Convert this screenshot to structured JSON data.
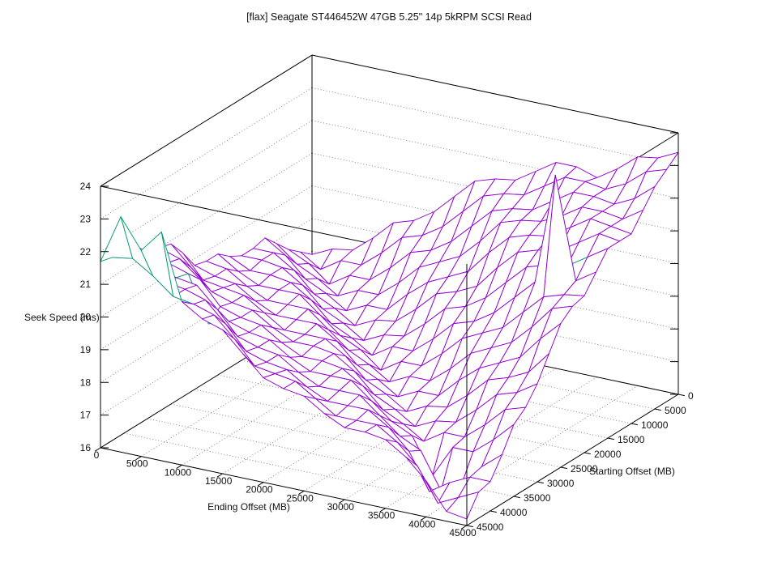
{
  "title": "[flax] Seagate ST446452W 47GB 5.25\" 14p 5kRPM SCSI Read",
  "chart_data": {
    "type": "surface3d-wireframe",
    "title": "[flax] Seagate ST446452W 47GB 5.25\" 14p 5kRPM SCSI Read",
    "xlabel": "Ending Offset (MB)",
    "ylabel": "Starting Offset (MB)",
    "zlabel": "Seek Speed (ms)",
    "xlim": [
      0,
      45000
    ],
    "ylim": [
      0,
      45000
    ],
    "zlim": [
      16,
      24
    ],
    "x_ticks": [
      0,
      5000,
      10000,
      15000,
      20000,
      25000,
      30000,
      35000,
      40000,
      45000
    ],
    "y_ticks": [
      0,
      5000,
      10000,
      15000,
      20000,
      25000,
      30000,
      35000,
      40000,
      45000
    ],
    "z_ticks": [
      16,
      17,
      18,
      19,
      20,
      21,
      22,
      23,
      24
    ],
    "grid": "dotted",
    "hidden3d": true,
    "legend_position": "none",
    "colors": {
      "surface_top": "#9400d3",
      "surface_bottom": "#009e73",
      "box": "#000000",
      "grid": "#878787",
      "text": "#111111",
      "background": "#ffffff"
    },
    "x": [
      0,
      2500,
      5000,
      7500,
      10000,
      12500,
      15000,
      17500,
      20000,
      22500,
      25000,
      27500,
      30000,
      32500,
      35000,
      37500,
      40000,
      42500,
      45000
    ],
    "y": [
      0,
      2500,
      5000,
      7500,
      10000,
      12500,
      15000,
      17500,
      20000,
      22500,
      25000,
      27500,
      30000,
      32500,
      35000,
      37500,
      40000,
      42500,
      45000
    ],
    "z_grid": [
      [
        17.9,
        18.2,
        18.3,
        18.8,
        19.4,
        19.6,
        20.0,
        20.6,
        21.2,
        21.4,
        21.5,
        21.9,
        22.3,
        22.3,
        22.1,
        22.5,
        23.0,
        23.1,
        23.4
      ],
      [
        18.2,
        17.8,
        18.2,
        18.2,
        18.7,
        19.3,
        19.5,
        19.9,
        20.5,
        21.1,
        21.3,
        21.4,
        21.8,
        22.2,
        22.2,
        22.1,
        22.4,
        22.9,
        23.1
      ],
      [
        18.5,
        18.2,
        17.7,
        18.1,
        18.1,
        18.6,
        19.2,
        19.4,
        19.8,
        20.4,
        21.0,
        21.2,
        21.3,
        21.7,
        22.1,
        22.1,
        22.0,
        22.3,
        22.8
      ],
      [
        18.9,
        18.4,
        18.1,
        17.7,
        18.0,
        18.0,
        18.5,
        19.1,
        19.4,
        19.7,
        20.3,
        21.0,
        21.2,
        21.3,
        21.6,
        22.0,
        22.0,
        21.9,
        22.3
      ],
      [
        19.3,
        18.9,
        18.3,
        18.0,
        17.6,
        17.9,
        17.9,
        18.5,
        19.0,
        19.3,
        19.6,
        20.3,
        20.9,
        21.1,
        21.2,
        21.6,
        22.0,
        21.9,
        21.8
      ],
      [
        19.2,
        19.2,
        18.8,
        18.2,
        17.9,
        17.5,
        17.8,
        17.9,
        18.4,
        19.0,
        19.2,
        19.5,
        20.2,
        20.8,
        21.0,
        21.1,
        21.5,
        21.9,
        21.8
      ],
      [
        19.2,
        19.2,
        19.1,
        18.7,
        18.1,
        17.8,
        17.4,
        17.7,
        17.8,
        18.3,
        18.9,
        19.1,
        19.5,
        20.1,
        20.7,
        20.9,
        21.0,
        21.4,
        21.8
      ],
      [
        19.4,
        19.1,
        19.1,
        19.0,
        18.6,
        18.0,
        17.7,
        17.3,
        17.7,
        17.7,
        18.2,
        18.8,
        19.0,
        19.4,
        20.0,
        20.6,
        24.0,
        20.9,
        21.3
      ],
      [
        19.7,
        19.3,
        19.0,
        19.0,
        19.0,
        18.5,
        18.0,
        17.7,
        17.2,
        17.6,
        17.6,
        18.1,
        18.7,
        19.0,
        19.3,
        19.9,
        20.5,
        20.7,
        20.8
      ],
      [
        19.7,
        19.6,
        19.2,
        18.9,
        18.9,
        18.9,
        18.4,
        17.9,
        17.6,
        17.2,
        17.5,
        17.5,
        18.0,
        18.6,
        18.9,
        19.2,
        19.8,
        20.5,
        20.7
      ],
      [
        19.8,
        19.6,
        19.5,
        19.1,
        18.8,
        18.8,
        18.8,
        18.4,
        17.8,
        17.5,
        17.1,
        17.4,
        17.4,
        18.0,
        18.5,
        18.8,
        19.1,
        19.8,
        20.4
      ],
      [
        20.4,
        19.7,
        19.6,
        19.5,
        19.1,
        18.7,
        18.7,
        18.7,
        18.3,
        17.7,
        17.4,
        17.0,
        17.3,
        17.4,
        17.9,
        18.5,
        18.7,
        19.0,
        19.7
      ],
      [
        20.9,
        20.3,
        19.7,
        19.5,
        19.4,
        19.0,
        18.7,
        18.7,
        18.6,
        18.2,
        17.6,
        17.3,
        16.9,
        17.2,
        17.3,
        17.8,
        18.4,
        18.6,
        19.0
      ],
      [
        21.0,
        20.8,
        20.3,
        19.6,
        19.4,
        19.3,
        18.9,
        18.6,
        18.6,
        18.5,
        18.1,
        17.5,
        17.2,
        16.8,
        17.2,
        17.2,
        17.7,
        18.3,
        18.5
      ],
      [
        21.1,
        20.9,
        20.7,
        19.3,
        19.5,
        19.3,
        19.2,
        18.8,
        18.5,
        18.5,
        18.5,
        18.0,
        17.5,
        17.2,
        16.1,
        17.1,
        17.1,
        17.6,
        18.2
      ],
      [
        21.5,
        21.0,
        20.8,
        20.7,
        20.1,
        19.4,
        19.2,
        19.1,
        18.7,
        18.4,
        18.4,
        18.4,
        17.9,
        17.4,
        17.1,
        16.0,
        16.3,
        17.0,
        17.5
      ],
      [
        22.4,
        21.4,
        20.9,
        20.8,
        20.6,
        20.0,
        19.3,
        19.1,
        19.0,
        18.6,
        18.3,
        18.3,
        18.3,
        17.9,
        17.3,
        16.2,
        16.6,
        16.9,
        16.9
      ],
      [
        21.6,
        21.7,
        21.3,
        20.8,
        20.7,
        20.5,
        19.9,
        19.2,
        19.1,
        19.0,
        18.6,
        18.2,
        18.2,
        18.2,
        17.8,
        17.2,
        16.2,
        16.5,
        16.8
      ],
      [
        21.7,
        23.2,
        22.3,
        23.0,
        21.0,
        20.6,
        20.4,
        19.8,
        19.2,
        19.0,
        18.9,
        18.5,
        18.2,
        18.2,
        18.1,
        17.7,
        17.1,
        16.3,
        16.2
      ]
    ]
  }
}
